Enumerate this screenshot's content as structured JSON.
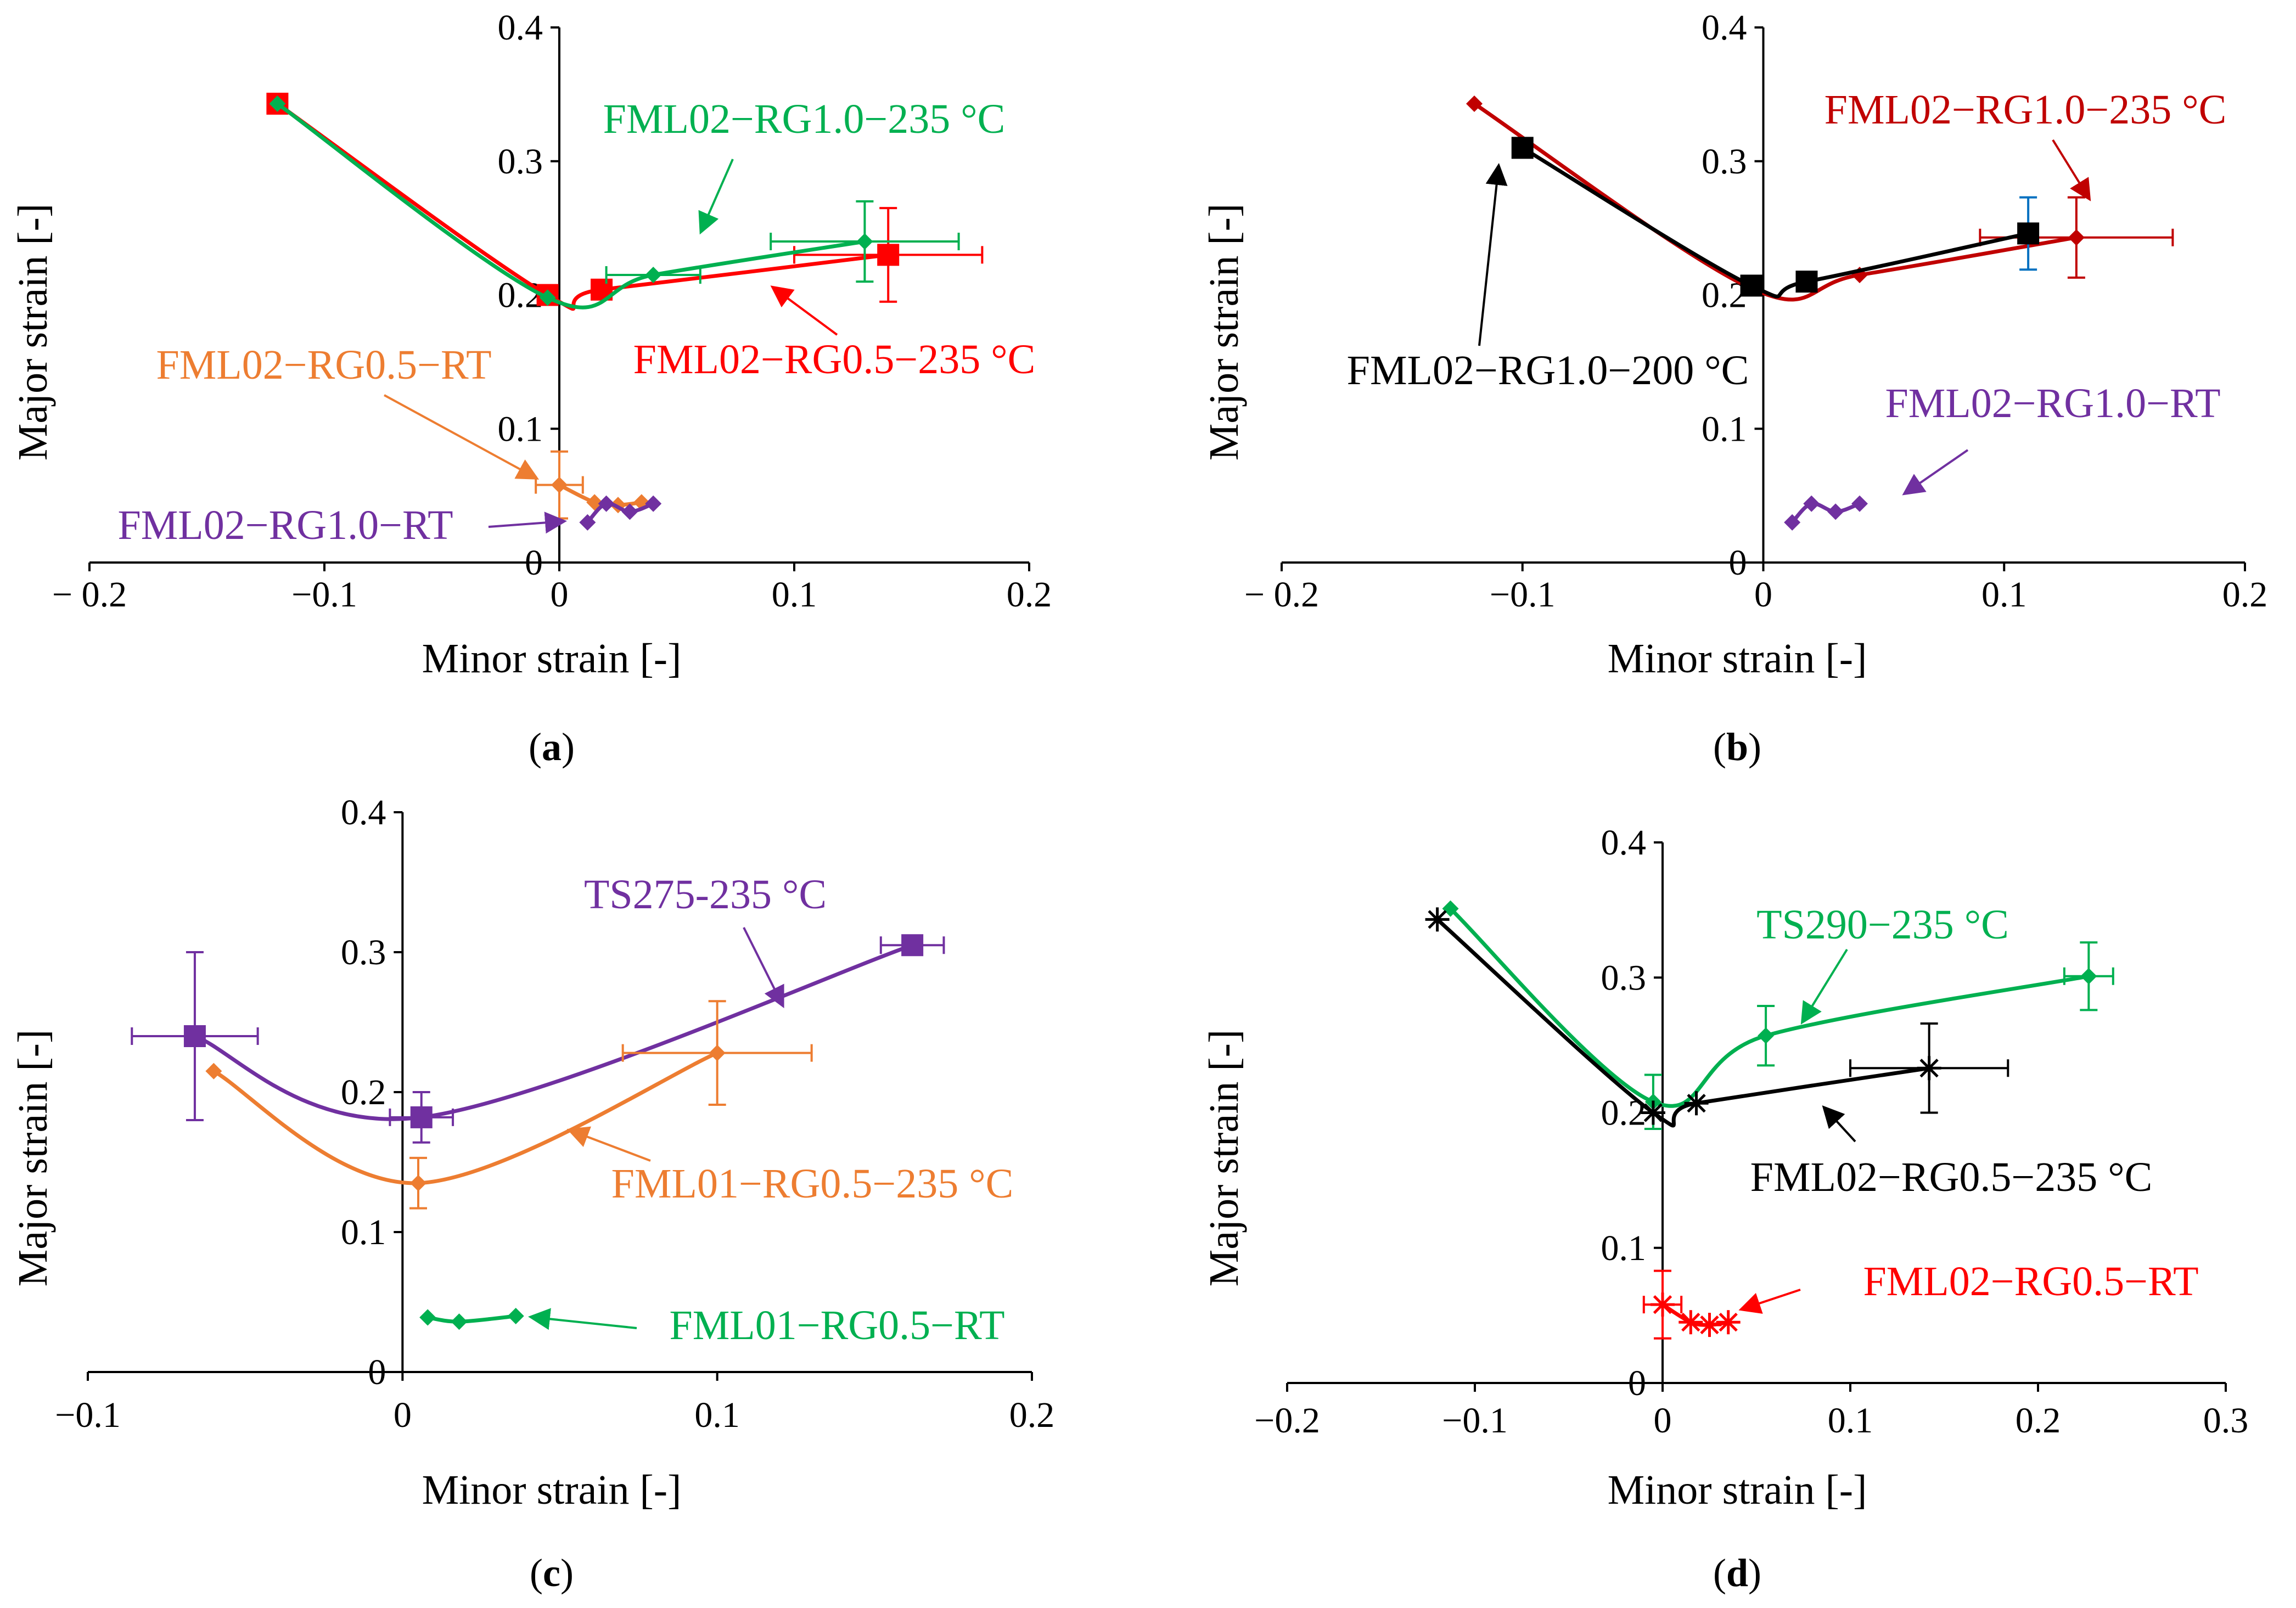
{
  "figure": {
    "panels": [
      {
        "id": "a",
        "label": "a"
      },
      {
        "id": "b",
        "label": "b"
      },
      {
        "id": "c",
        "label": "c"
      },
      {
        "id": "d",
        "label": "d"
      }
    ]
  },
  "chart_data": [
    {
      "panel": "a",
      "type": "line",
      "xlabel": "Minor strain [-]",
      "ylabel": "Major strain [-]",
      "xlim": [
        -0.2,
        0.2
      ],
      "ylim": [
        0,
        0.4
      ],
      "xticks": [
        "− 0.2",
        "−0.1",
        "0",
        "0.1",
        "0.2"
      ],
      "yticks": [
        "0",
        "0.1",
        "0.2",
        "0.3",
        "0.4"
      ],
      "series": [
        {
          "name": "FML02−RG0.5−235 °C",
          "color": "#ff0000",
          "marker": "square",
          "x": [
            -0.12,
            -0.005,
            0.018,
            0.14
          ],
          "y": [
            0.343,
            0.2,
            0.204,
            0.23
          ],
          "err": [
            {
              "i": 3,
              "xerr": 0.04,
              "yerr": 0.035
            }
          ]
        },
        {
          "name": "FML02−RG1.0−235 °C",
          "color": "#00b050",
          "marker": "diamond",
          "x": [
            -0.12,
            -0.005,
            0.04,
            0.13
          ],
          "y": [
            0.343,
            0.198,
            0.215,
            0.24
          ],
          "err": [
            {
              "i": 2,
              "xerr": 0.02,
              "yerr": 0
            },
            {
              "i": 3,
              "xerr": 0.04,
              "yerr": 0.03
            }
          ]
        },
        {
          "name": "FML02−RG0.5−RT",
          "color": "#ed7d31",
          "marker": "diamond",
          "x": [
            0.0,
            0.015,
            0.025,
            0.035
          ],
          "y": [
            0.058,
            0.045,
            0.043,
            0.045
          ],
          "err": [
            {
              "i": 0,
              "xerr": 0.01,
              "yerr": 0.025
            }
          ]
        },
        {
          "name": "FML02−RG1.0−RT",
          "color": "#7030a0",
          "marker": "diamond",
          "x": [
            0.012,
            0.02,
            0.03,
            0.04
          ],
          "y": [
            0.03,
            0.044,
            0.038,
            0.044
          ],
          "err": []
        }
      ],
      "annotations": [
        {
          "text": "FML02−RG1.0−235 °C",
          "color": "#00b050"
        },
        {
          "text": "FML02−RG0.5−235 °C",
          "color": "#ff0000"
        },
        {
          "text": "FML02−RG0.5−RT",
          "color": "#ed7d31"
        },
        {
          "text": "FML02−RG1.0−RT",
          "color": "#7030a0"
        }
      ]
    },
    {
      "panel": "b",
      "type": "line",
      "xlabel": "Minor strain [-]",
      "ylabel": "Major strain [-]",
      "xlim": [
        -0.2,
        0.2
      ],
      "ylim": [
        0,
        0.4
      ],
      "xticks": [
        "− 0.2",
        "−0.1",
        "0",
        "0.1",
        "0.2"
      ],
      "yticks": [
        "0",
        "0.1",
        "0.2",
        "0.3",
        "0.4"
      ],
      "series": [
        {
          "name": "FML02−RG1.0−235 °C",
          "color": "#c00000",
          "marker": "diamond",
          "x": [
            -0.12,
            -0.005,
            0.04,
            0.13
          ],
          "y": [
            0.343,
            0.205,
            0.215,
            0.243
          ],
          "err": [
            {
              "i": 3,
              "xerr": 0.04,
              "yerr": 0.03
            }
          ]
        },
        {
          "name": "FML02−RG1.0−200 °C",
          "color": "#000000",
          "marker": "square",
          "x": [
            -0.1,
            -0.005,
            0.018,
            0.11
          ],
          "y": [
            0.31,
            0.207,
            0.21,
            0.246
          ],
          "err": [
            {
              "i": 3,
              "xerr": 0,
              "yerr": 0.027
            }
          ]
        },
        {
          "name": "FML02−RG1.0−RT",
          "color": "#7030a0",
          "marker": "diamond",
          "x": [
            0.012,
            0.02,
            0.03,
            0.04
          ],
          "y": [
            0.03,
            0.044,
            0.038,
            0.044
          ],
          "err": []
        }
      ],
      "annotations": [
        {
          "text": "FML02−RG1.0−235 °C",
          "color": "#c00000"
        },
        {
          "text": "FML02−RG1.0−200 °C",
          "color": "#000000"
        },
        {
          "text": "FML02−RG1.0−RT",
          "color": "#7030a0"
        }
      ]
    },
    {
      "panel": "c",
      "type": "line",
      "xlabel": "Minor strain [-]",
      "ylabel": "Major strain [-]",
      "xlim": [
        -0.1,
        0.2
      ],
      "ylim": [
        0,
        0.4
      ],
      "xticks": [
        "−0.1",
        "0",
        "0.1",
        "0.2"
      ],
      "yticks": [
        "0",
        "0.1",
        "0.2",
        "0.3",
        "0.4"
      ],
      "series": [
        {
          "name": "TS275-235 °C",
          "color": "#7030a0",
          "marker": "square",
          "x": [
            -0.066,
            0.006,
            0.162
          ],
          "y": [
            0.24,
            0.182,
            0.305
          ],
          "err": [
            {
              "i": 0,
              "xerr": 0.02,
              "yerr": 0.06
            },
            {
              "i": 1,
              "xerr": 0.01,
              "yerr": 0.018
            },
            {
              "i": 2,
              "xerr": 0.01,
              "yerr": 0
            }
          ]
        },
        {
          "name": "FML01−RG0.5−235 °C",
          "color": "#ed7d31",
          "marker": "diamond",
          "x": [
            -0.06,
            0.005,
            0.1
          ],
          "y": [
            0.215,
            0.135,
            0.228
          ],
          "err": [
            {
              "i": 1,
              "xerr": 0,
              "yerr": 0.018
            },
            {
              "i": 2,
              "xerr": 0.03,
              "yerr": 0.037
            }
          ]
        },
        {
          "name": "FML01−RG0.5−RT",
          "color": "#00b050",
          "marker": "diamond",
          "x": [
            0.008,
            0.018,
            0.036
          ],
          "y": [
            0.039,
            0.036,
            0.04
          ],
          "err": []
        }
      ],
      "annotations": [
        {
          "text": "TS275-235 °C",
          "color": "#7030a0"
        },
        {
          "text": "FML01−RG0.5−235 °C",
          "color": "#ed7d31"
        },
        {
          "text": "FML01−RG0.5−RT",
          "color": "#00b050"
        }
      ]
    },
    {
      "panel": "d",
      "type": "line",
      "xlabel": "Minor strain [-]",
      "ylabel": "Major strain [-]",
      "xlim": [
        -0.2,
        0.3
      ],
      "ylim": [
        0,
        0.4
      ],
      "xticks": [
        "−0.2",
        "−0.1",
        "0",
        "0.1",
        "0.2",
        "0.3"
      ],
      "yticks": [
        "0",
        "0.1",
        "0.2",
        "0.3",
        "0.4"
      ],
      "series": [
        {
          "name": "TS290−235 °C",
          "color": "#00b050",
          "marker": "diamond",
          "x": [
            -0.113,
            -0.005,
            0.055,
            0.227
          ],
          "y": [
            0.351,
            0.208,
            0.257,
            0.301
          ],
          "err": [
            {
              "i": 1,
              "xerr": 0,
              "yerr": 0.02
            },
            {
              "i": 2,
              "xerr": 0,
              "yerr": 0.022
            },
            {
              "i": 3,
              "xerr": 0.013,
              "yerr": 0.025
            }
          ]
        },
        {
          "name": "FML02−RG0.5−235 °C",
          "color": "#000000",
          "marker": "star",
          "x": [
            -0.12,
            -0.005,
            0.018,
            0.142
          ],
          "y": [
            0.343,
            0.2,
            0.207,
            0.233
          ],
          "err": [
            {
              "i": 3,
              "xerr": 0.042,
              "yerr": 0.033
            }
          ]
        },
        {
          "name": "FML02−RG0.5−RT",
          "color": "#ff0000",
          "marker": "star",
          "x": [
            0.0,
            0.015,
            0.025,
            0.035
          ],
          "y": [
            0.058,
            0.045,
            0.043,
            0.045
          ],
          "err": [
            {
              "i": 0,
              "xerr": 0.01,
              "yerr": 0.025
            }
          ]
        }
      ],
      "annotations": [
        {
          "text": "TS290−235 °C",
          "color": "#00b050"
        },
        {
          "text": "FML02−RG0.5−235 °C",
          "color": "#000000"
        },
        {
          "text": "FML02−RG0.5−RT",
          "color": "#ff0000"
        }
      ]
    }
  ]
}
